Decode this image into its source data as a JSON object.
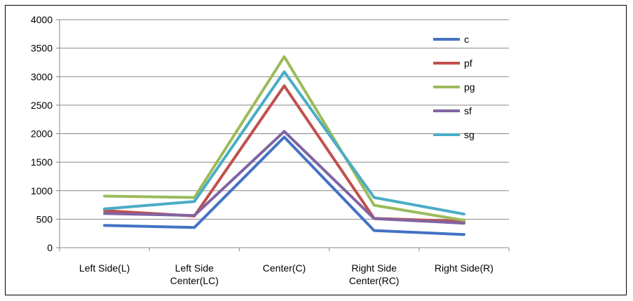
{
  "chart_data": {
    "type": "line",
    "title": "",
    "xlabel": "",
    "ylabel": "",
    "categories": [
      [
        "Left Side(L)"
      ],
      [
        "Left Side",
        "Center(LC)"
      ],
      [
        "Center(C)"
      ],
      [
        "Right Side",
        "Center(RC)"
      ],
      [
        "Right Side(R)"
      ]
    ],
    "ylim": [
      0,
      4000
    ],
    "yticks": [
      0,
      500,
      1000,
      1500,
      2000,
      2500,
      3000,
      3500,
      4000
    ],
    "grid": "horizontal",
    "legend_position": "right",
    "series": [
      {
        "name": "c",
        "color": "#4472C4",
        "values": [
          390,
          355,
          1940,
          300,
          230
        ]
      },
      {
        "name": "pf",
        "color": "#C0504D",
        "values": [
          650,
          555,
          2840,
          515,
          460
        ]
      },
      {
        "name": "pg",
        "color": "#9BBB59",
        "values": [
          905,
          880,
          3350,
          745,
          480
        ]
      },
      {
        "name": "sf",
        "color": "#8064A2",
        "values": [
          600,
          565,
          2040,
          510,
          430
        ]
      },
      {
        "name": "sg",
        "color": "#4BACC6",
        "values": [
          680,
          810,
          3085,
          880,
          590
        ]
      }
    ]
  }
}
